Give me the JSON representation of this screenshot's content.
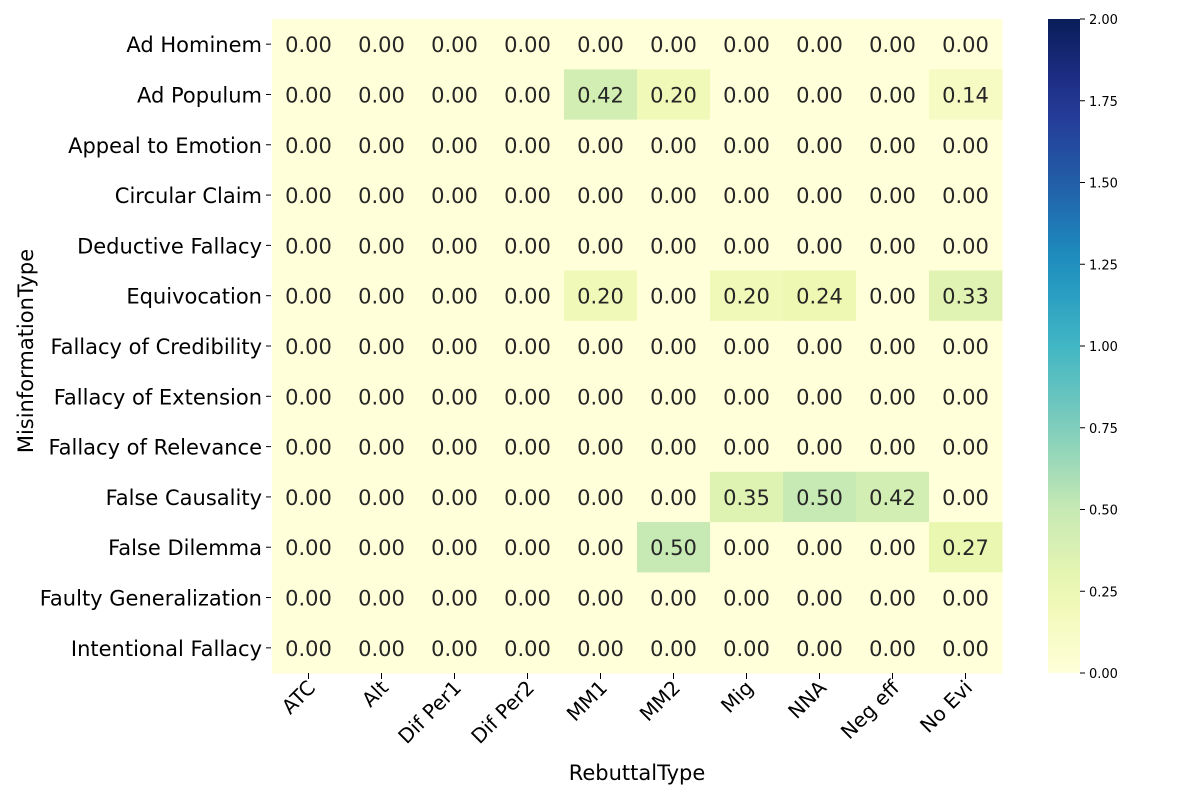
{
  "chart_data": {
    "type": "heatmap",
    "xlabel": "RebuttalType",
    "ylabel": "MisinformationType",
    "x_categories": [
      "ATC",
      "Alt",
      "Dif Per1",
      "Dif Per2",
      "MM1",
      "MM2",
      "Mig",
      "NNA",
      "Neg eff",
      "No Evi"
    ],
    "y_categories": [
      "Ad Hominem",
      "Ad Populum",
      "Appeal to Emotion",
      "Circular Claim",
      "Deductive Fallacy",
      "Equivocation",
      "Fallacy of Credibility",
      "Fallacy of Extension",
      "Fallacy of Relevance",
      "False Causality",
      "False Dilemma",
      "Faulty Generalization",
      "Intentional Fallacy"
    ],
    "values": [
      [
        0.0,
        0.0,
        0.0,
        0.0,
        0.0,
        0.0,
        0.0,
        0.0,
        0.0,
        0.0
      ],
      [
        0.0,
        0.0,
        0.0,
        0.0,
        0.42,
        0.2,
        0.0,
        0.0,
        0.0,
        0.14
      ],
      [
        0.0,
        0.0,
        0.0,
        0.0,
        0.0,
        0.0,
        0.0,
        0.0,
        0.0,
        0.0
      ],
      [
        0.0,
        0.0,
        0.0,
        0.0,
        0.0,
        0.0,
        0.0,
        0.0,
        0.0,
        0.0
      ],
      [
        0.0,
        0.0,
        0.0,
        0.0,
        0.0,
        0.0,
        0.0,
        0.0,
        0.0,
        0.0
      ],
      [
        0.0,
        0.0,
        0.0,
        0.0,
        0.2,
        0.0,
        0.2,
        0.24,
        0.0,
        0.33
      ],
      [
        0.0,
        0.0,
        0.0,
        0.0,
        0.0,
        0.0,
        0.0,
        0.0,
        0.0,
        0.0
      ],
      [
        0.0,
        0.0,
        0.0,
        0.0,
        0.0,
        0.0,
        0.0,
        0.0,
        0.0,
        0.0
      ],
      [
        0.0,
        0.0,
        0.0,
        0.0,
        0.0,
        0.0,
        0.0,
        0.0,
        0.0,
        0.0
      ],
      [
        0.0,
        0.0,
        0.0,
        0.0,
        0.0,
        0.0,
        0.35,
        0.5,
        0.42,
        0.0
      ],
      [
        0.0,
        0.0,
        0.0,
        0.0,
        0.0,
        0.5,
        0.0,
        0.0,
        0.0,
        0.27
      ],
      [
        0.0,
        0.0,
        0.0,
        0.0,
        0.0,
        0.0,
        0.0,
        0.0,
        0.0,
        0.0
      ],
      [
        0.0,
        0.0,
        0.0,
        0.0,
        0.0,
        0.0,
        0.0,
        0.0,
        0.0,
        0.0
      ]
    ],
    "value_format": "0.00",
    "colormap": "YlGnBu",
    "vmin": 0,
    "vmax": 2,
    "colorbar_ticks": [
      "0.00",
      "0.25",
      "0.50",
      "0.75",
      "1.00",
      "1.25",
      "1.50",
      "1.75",
      "2.00"
    ],
    "colorbar_position": "right",
    "colors": {
      "low": "#ffffd9",
      "high": "#081d58",
      "text_dark": "#262626",
      "text_light": "#ffffff"
    }
  }
}
